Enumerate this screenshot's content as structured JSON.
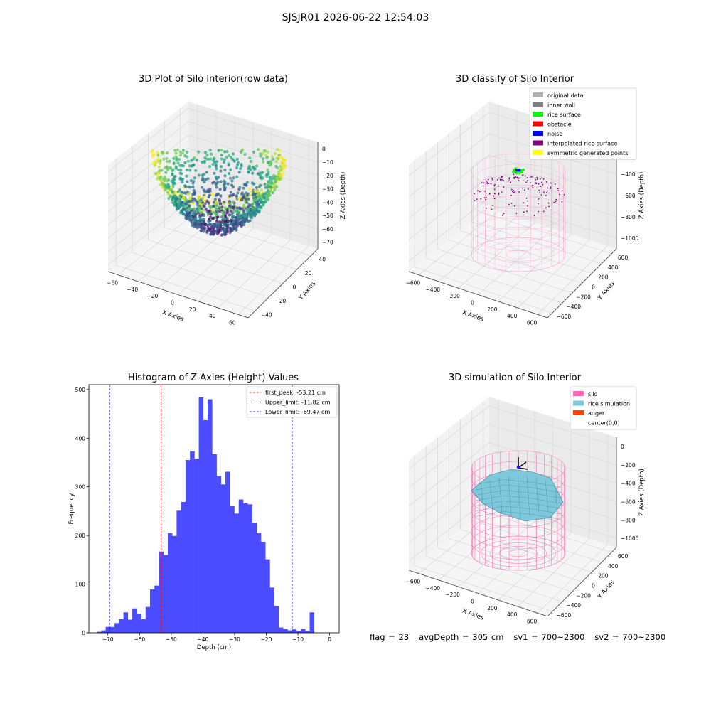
{
  "figure": {
    "suptitle": "SJSJR01 2026-06-22 12:54:03",
    "status": {
      "flag": "flag = 23",
      "avg_depth": "avgDepth = 305 cm",
      "sv1": "sv1 = 700~2300",
      "sv2": "sv2 = 700~2300"
    }
  },
  "colors": {
    "hist_bar": "#4b4bff",
    "first_peak_line": "#ff0000",
    "limit_line": "#0000ff",
    "silo_wire": "#ff69b4",
    "rice_surface": "#7ec8dc",
    "pane": "#f2f2f2",
    "grid": "#d9d9d9"
  },
  "chart_data": [
    {
      "type": "scatter",
      "title": "3D Plot of Silo Interior(row data)",
      "xlabel": "X Axies",
      "ylabel": "Y Axies",
      "zlabel": "Z Axies (Depth)",
      "x_ticks": [
        "−60",
        "−40",
        "−20",
        "0",
        "20",
        "40",
        "60"
      ],
      "y_ticks": [
        "−40",
        "−20",
        "0",
        "20",
        "40"
      ],
      "z_ticks": [
        "0",
        "−10",
        "−20",
        "−30",
        "−40",
        "−50",
        "−60",
        "−70"
      ],
      "xlim": [
        -70,
        70
      ],
      "ylim": [
        -50,
        50
      ],
      "zlim": [
        -78,
        2
      ],
      "colormap": "viridis",
      "description_points": "dense bowl-shaped point cloud of silo interior depth readings, colored by depth"
    },
    {
      "type": "scatter",
      "title": "3D classify of Silo Interior",
      "xlabel": "X Axies",
      "ylabel": "Y Axies",
      "zlabel": "Z Axies (Depth)",
      "x_ticks": [
        "−600",
        "−400",
        "−200",
        "0",
        "200",
        "400",
        "600"
      ],
      "y_ticks": [
        "−600",
        "−400",
        "−200",
        "0",
        "200",
        "400",
        "600"
      ],
      "z_ticks": [
        "−200",
        "−400",
        "−600",
        "−800",
        "−1000"
      ],
      "legend": [
        {
          "label": "original data",
          "color": "#b0b0b0"
        },
        {
          "label": "inner wall",
          "color": "#808080"
        },
        {
          "label": "rice surface",
          "color": "#00ff00"
        },
        {
          "label": "obstacle",
          "color": "#ff0000"
        },
        {
          "label": "noise",
          "color": "#0000ff"
        },
        {
          "label": "interpolated rice surface",
          "color": "#800080"
        },
        {
          "label": "symmetric generated points",
          "color": "#ffff00"
        }
      ],
      "legend_loc": "upper right"
    },
    {
      "type": "bar",
      "title": "Histogram of Z-Axies (Height) Values",
      "xlabel": "Depth (cm)",
      "ylabel": "Frequency",
      "xlim": [
        -76,
        3
      ],
      "ylim": [
        0,
        510
      ],
      "x_ticks": [
        -70,
        -60,
        -50,
        -40,
        -30,
        -20,
        -10,
        0
      ],
      "y_ticks": [
        0,
        100,
        200,
        300,
        400,
        500
      ],
      "bin_start": -73.5,
      "bin_width": 1.4,
      "values": [
        2,
        5,
        12,
        12,
        20,
        28,
        42,
        27,
        50,
        39,
        28,
        53,
        89,
        97,
        167,
        160,
        205,
        199,
        251,
        269,
        355,
        373,
        358,
        484,
        437,
        480,
        367,
        322,
        305,
        331,
        260,
        245,
        274,
        266,
        264,
        226,
        205,
        187,
        151,
        93,
        55,
        11,
        8,
        5,
        7,
        4,
        8,
        4,
        42
      ],
      "vlines": [
        {
          "label": "first_peak: -53.21 cm",
          "x": -53.21,
          "color": "#ff0000"
        },
        {
          "label": "Upper_limit: -11.82 cm",
          "x": -11.82,
          "color": "#0000ff"
        },
        {
          "label": "Lower_limit: -69.47 cm",
          "x": -69.47,
          "color": "#0000ff"
        }
      ],
      "legend_loc": "upper right"
    },
    {
      "type": "surface",
      "title": "3D simulation of Silo Interior",
      "xlabel": "X Axies",
      "ylabel": "Y Axies",
      "zlabel": "Z Axies (Depth)",
      "x_ticks": [
        "−600",
        "−400",
        "−200",
        "0",
        "200",
        "400",
        "600"
      ],
      "y_ticks": [
        "−600",
        "−400",
        "−200",
        "0",
        "200",
        "400",
        "600"
      ],
      "z_ticks": [
        "0",
        "−200",
        "−400",
        "−600",
        "−800",
        "−1000"
      ],
      "legend": [
        {
          "label": "silo",
          "color": "#ff69b4"
        },
        {
          "label": "rice simulation",
          "color": "#7ec8dc"
        },
        {
          "label": "auger",
          "color": "#ff4500"
        },
        {
          "label": "center(0,0)",
          "color": "none"
        }
      ],
      "legend_loc": "upper right"
    }
  ]
}
